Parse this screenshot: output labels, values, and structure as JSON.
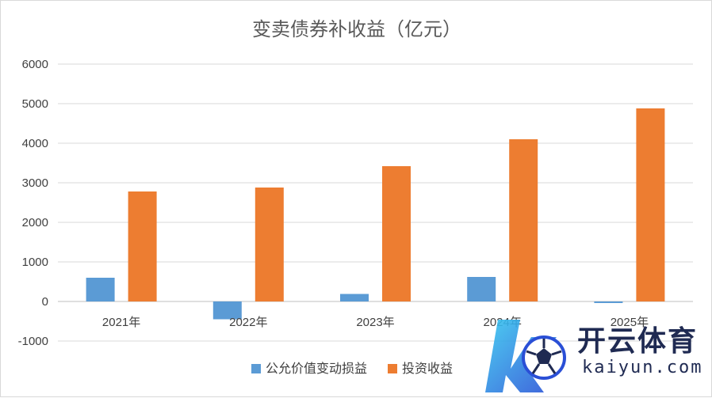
{
  "chart_data": {
    "type": "bar",
    "title": "变卖债券补收益（亿元）",
    "categories": [
      "2021年",
      "2022年",
      "2023年",
      "2024年",
      "2025年"
    ],
    "series": [
      {
        "name": "公允价值变动损益",
        "color": "#5b9bd5",
        "values": [
          600,
          -450,
          190,
          620,
          -40
        ]
      },
      {
        "name": "投资收益",
        "color": "#ed7d31",
        "values": [
          2780,
          2880,
          3420,
          4100,
          4880
        ]
      }
    ],
    "ylim": [
      -1000,
      6000
    ],
    "yticks": [
      -1000,
      0,
      1000,
      2000,
      3000,
      4000,
      5000,
      6000
    ],
    "grid": true,
    "legend_position": "bottom"
  },
  "watermark": {
    "brand": "开云体育",
    "domain": "kaiyun.com",
    "logo_icon": "k-football-logo-icon"
  }
}
